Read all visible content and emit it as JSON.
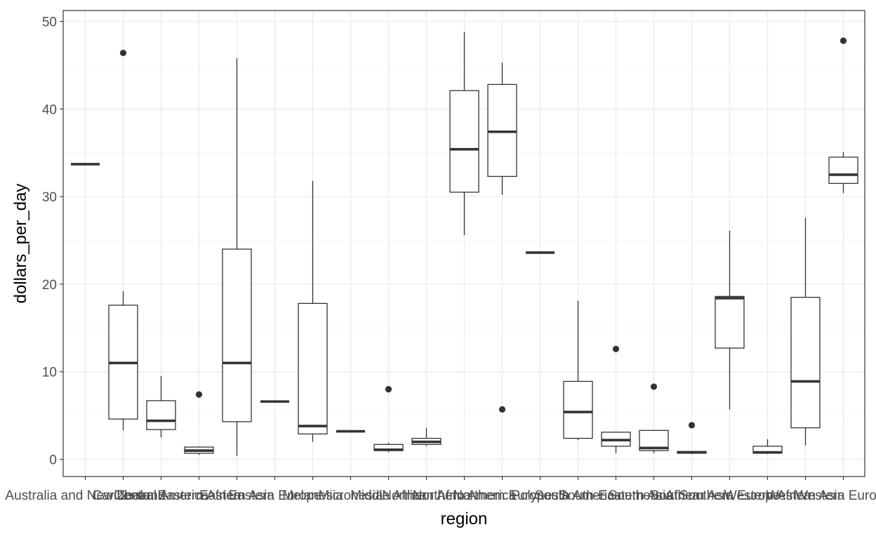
{
  "chart_data": {
    "type": "box",
    "xlabel": "region",
    "ylabel": "dollars_per_day",
    "ylim": [
      -2,
      51
    ],
    "y_ticks": [
      0,
      10,
      20,
      30,
      40,
      50
    ],
    "grid": true,
    "theme": "bw",
    "categories": [
      "Australia and New Zealand",
      "Caribbean",
      "Central America",
      "Eastern Africa",
      "Eastern Asia",
      "Eastern Europe",
      "Melanesia",
      "Micronesia",
      "Middle Africa",
      "Northern Africa",
      "Northern America",
      "Northern Europe",
      "Polynesia",
      "South America",
      "South-Eastern Asia",
      "Southern Africa",
      "Southern Asia",
      "Southern Europe",
      "Western Africa",
      "Western Asia",
      "Western Europe"
    ],
    "boxes": [
      {
        "min": 33.7,
        "q1": 33.7,
        "median": 33.7,
        "q3": 33.7,
        "max": 33.7,
        "outliers": []
      },
      {
        "min": 3.3,
        "q1": 4.6,
        "median": 11.0,
        "q3": 17.6,
        "max": 19.2,
        "outliers": [
          46.4
        ]
      },
      {
        "min": 2.5,
        "q1": 3.4,
        "median": 4.4,
        "q3": 6.7,
        "max": 9.5,
        "outliers": []
      },
      {
        "min": 0.5,
        "q1": 0.7,
        "median": 1.0,
        "q3": 1.4,
        "max": 1.5,
        "outliers": [
          7.4
        ]
      },
      {
        "min": 0.4,
        "q1": 4.3,
        "median": 11.0,
        "q3": 24.0,
        "max": 45.8,
        "outliers": []
      },
      {
        "min": 6.6,
        "q1": 6.6,
        "median": 6.6,
        "q3": 6.6,
        "max": 6.6,
        "outliers": []
      },
      {
        "min": 2.0,
        "q1": 2.9,
        "median": 3.8,
        "q3": 17.8,
        "max": 31.8,
        "outliers": []
      },
      {
        "min": 3.2,
        "q1": 3.2,
        "median": 3.2,
        "q3": 3.2,
        "max": 3.2,
        "outliers": []
      },
      {
        "min": 0.8,
        "q1": 1.0,
        "median": 1.1,
        "q3": 1.7,
        "max": 1.9,
        "outliers": [
          8.0
        ]
      },
      {
        "min": 1.5,
        "q1": 1.7,
        "median": 2.0,
        "q3": 2.4,
        "max": 3.6,
        "outliers": []
      },
      {
        "min": 25.6,
        "q1": 30.5,
        "median": 35.4,
        "q3": 42.1,
        "max": 48.8,
        "outliers": []
      },
      {
        "min": 30.2,
        "q1": 32.3,
        "median": 37.4,
        "q3": 42.8,
        "max": 45.3,
        "outliers": [
          5.7
        ]
      },
      {
        "min": 23.6,
        "q1": 23.6,
        "median": 23.6,
        "q3": 23.6,
        "max": 23.6,
        "outliers": []
      },
      {
        "min": 2.2,
        "q1": 2.4,
        "median": 5.4,
        "q3": 8.9,
        "max": 18.1,
        "outliers": []
      },
      {
        "min": 0.7,
        "q1": 1.5,
        "median": 2.2,
        "q3": 3.1,
        "max": 3.1,
        "outliers": [
          12.6
        ]
      },
      {
        "min": 0.7,
        "q1": 1.0,
        "median": 1.3,
        "q3": 3.3,
        "max": 3.3,
        "outliers": [
          8.3
        ]
      },
      {
        "min": 0.6,
        "q1": 0.7,
        "median": 0.8,
        "q3": 0.9,
        "max": 0.9,
        "outliers": [
          3.9
        ]
      },
      {
        "min": 5.7,
        "q1": 12.7,
        "median": 18.4,
        "q3": 18.6,
        "max": 26.1,
        "outliers": []
      },
      {
        "min": 0.6,
        "q1": 0.7,
        "median": 0.8,
        "q3": 1.5,
        "max": 2.3,
        "outliers": []
      },
      {
        "min": 1.6,
        "q1": 3.6,
        "median": 8.9,
        "q3": 18.5,
        "max": 27.6,
        "outliers": []
      },
      {
        "min": 30.4,
        "q1": 31.5,
        "median": 32.5,
        "q3": 34.5,
        "max": 35.1,
        "outliers": [
          47.8
        ]
      }
    ]
  }
}
